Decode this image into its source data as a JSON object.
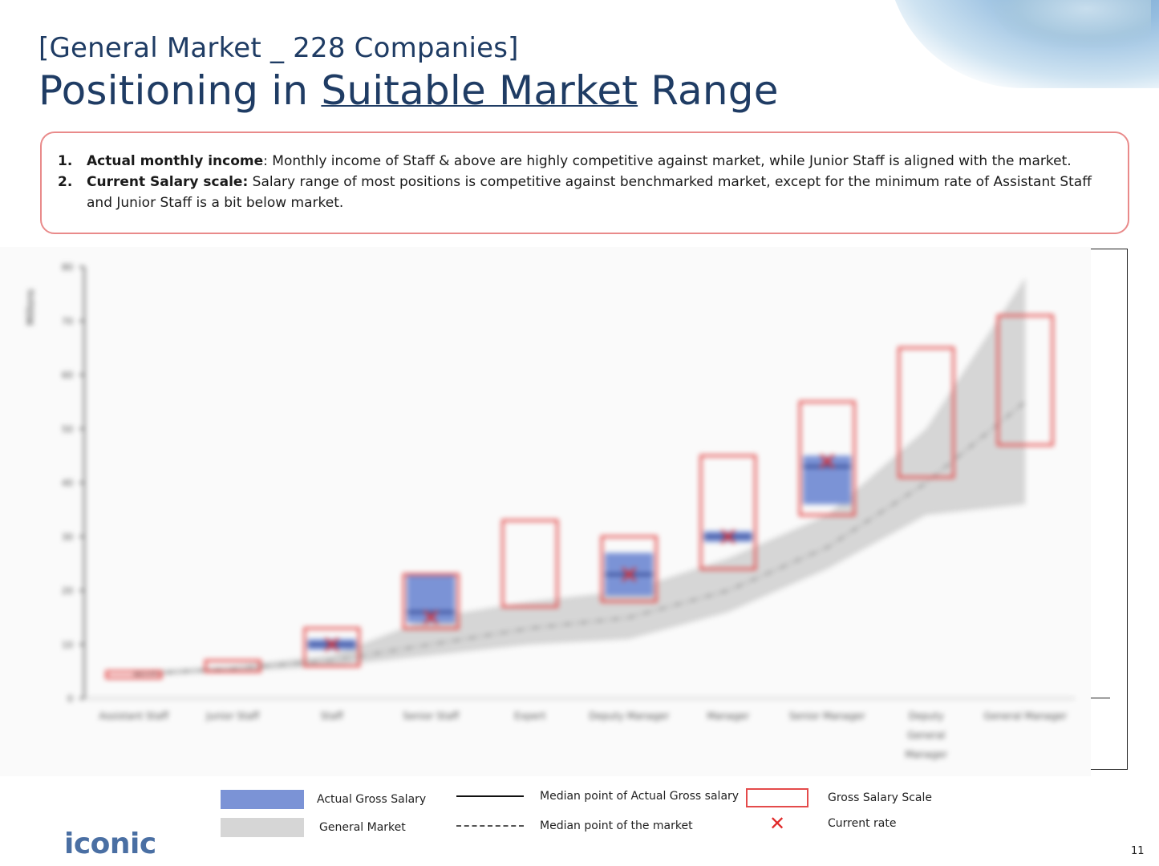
{
  "header": {
    "subtitle": "[General Market _ 228 Companies]",
    "title_prefix": "Positioning in ",
    "title_underlined": "Suitable Market",
    "title_suffix": " Range"
  },
  "notes": [
    {
      "num": "1.",
      "label": "Actual monthly income",
      "sep": ":",
      "text": " Monthly income of Staff & above are highly competitive against market, while Junior Staff is aligned with the market."
    },
    {
      "num": "2.",
      "label": "Current Salary scale:",
      "sep": "",
      "text": " Salary range of most positions is competitive against benchmarked market, except for the minimum rate of Assistant Staff and Junior Staff is a bit below market."
    }
  ],
  "chart_data": {
    "type": "box-range",
    "y_unit_label": "Millions",
    "ylim": [
      0,
      80
    ],
    "y_ticks": [
      0,
      10,
      20,
      30,
      40,
      50,
      60,
      70,
      80
    ],
    "categories": [
      "Assistant Staff",
      "Junior Staff",
      "Staff",
      "Senior Staff",
      "Expert",
      "Deputy Manager",
      "Manager",
      "Senior Manager",
      "Deputy General Manager",
      "General Manager"
    ],
    "market_band": {
      "low": [
        4,
        5,
        6,
        8,
        10,
        11,
        16,
        24,
        34,
        36
      ],
      "high": [
        5,
        6,
        8,
        15,
        18,
        20,
        26,
        34,
        50,
        78
      ],
      "median": [
        4.5,
        5.5,
        7,
        10,
        13,
        15,
        20,
        28,
        40,
        55
      ]
    },
    "actual_gross": {
      "low": [
        null,
        null,
        9,
        14,
        null,
        19,
        29,
        36,
        null,
        null
      ],
      "high": [
        null,
        null,
        11,
        23,
        null,
        27,
        31,
        45,
        null,
        null
      ],
      "median": [
        null,
        null,
        10,
        16,
        null,
        23,
        30,
        43,
        null,
        null
      ]
    },
    "scale": {
      "min": [
        4,
        5,
        6,
        13,
        17,
        18,
        24,
        34,
        41,
        47
      ],
      "max": [
        5,
        7,
        13,
        23,
        33,
        30,
        45,
        55,
        65,
        71
      ]
    },
    "current_rate": [
      null,
      null,
      10,
      15,
      null,
      23,
      30,
      44,
      null,
      null
    ],
    "colors": {
      "actual": "#7b93d6",
      "market": "#cfcfcf",
      "scale": "#e44b4b",
      "current": "#e02a2a"
    }
  },
  "legend": {
    "actual": "Actual Gross Salary",
    "market": "General Market",
    "median_actual": "Median point of Actual Gross salary",
    "median_market": "Median point of the market",
    "scale": "Gross Salary Scale",
    "current": "Current rate",
    "current_symbol": "✕"
  },
  "footer": {
    "logo": "iconic",
    "page": "11"
  }
}
